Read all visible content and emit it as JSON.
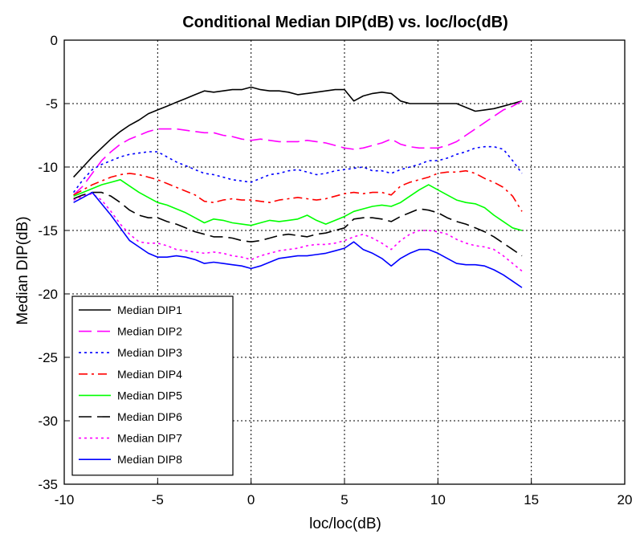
{
  "chart_data": {
    "type": "line",
    "title": "Conditional Median DIP(dB) vs. loc/loc(dB)",
    "xlabel": "loc/loc(dB)",
    "ylabel": "Median DIP(dB)",
    "xlim": [
      -10,
      20
    ],
    "ylim": [
      -35,
      0
    ],
    "xticks": [
      -10,
      -5,
      0,
      5,
      10,
      15,
      20
    ],
    "yticks": [
      0,
      -5,
      -10,
      -15,
      -20,
      -25,
      -30,
      -35
    ],
    "grid": true,
    "legend_position": "bottom-left",
    "series": [
      {
        "name": "Median DIP1",
        "color": "#000000",
        "dash": "solid",
        "x": [
          -9.5,
          -9,
          -8.5,
          -8,
          -7.5,
          -7,
          -6.5,
          -6,
          -5.5,
          -5,
          -4.5,
          -4,
          -3.5,
          -3,
          -2.5,
          -2,
          -1.5,
          -1,
          -0.5,
          0,
          0.5,
          1,
          1.5,
          2,
          2.5,
          3,
          3.5,
          4,
          4.5,
          5,
          5.5,
          6,
          6.5,
          7,
          7.5,
          8,
          8.5,
          9,
          9.5,
          10,
          10.5,
          11,
          11.5,
          12,
          12.5,
          13,
          13.5,
          14,
          14.5
        ],
        "y": [
          -10.8,
          -10,
          -9.2,
          -8.5,
          -7.8,
          -7.2,
          -6.7,
          -6.3,
          -5.8,
          -5.5,
          -5.2,
          -4.9,
          -4.6,
          -4.3,
          -4,
          -4.1,
          -4,
          -3.9,
          -3.9,
          -3.7,
          -3.9,
          -4,
          -4,
          -4.1,
          -4.3,
          -4.2,
          -4.1,
          -4,
          -3.9,
          -3.9,
          -4.8,
          -4.4,
          -4.2,
          -4.1,
          -4.2,
          -4.8,
          -5,
          -5,
          -5,
          -5,
          -5,
          -5,
          -5.3,
          -5.6,
          -5.5,
          -5.4,
          -5.2,
          -5,
          -4.8
        ]
      },
      {
        "name": "Median DIP2",
        "color": "#ff00ff",
        "dash": "longdash",
        "x": [
          -9.5,
          -9,
          -8.5,
          -8,
          -7.5,
          -7,
          -6.5,
          -6,
          -5.5,
          -5,
          -4.5,
          -4,
          -3.5,
          -3,
          -2.5,
          -2,
          -1.5,
          -1,
          -0.5,
          0,
          0.5,
          1,
          1.5,
          2,
          2.5,
          3,
          3.5,
          4,
          4.5,
          5,
          5.5,
          6,
          6.5,
          7,
          7.5,
          8,
          8.5,
          9,
          9.5,
          10,
          10.5,
          11,
          11.5,
          12,
          12.5,
          13,
          13.5,
          14,
          14.5
        ],
        "y": [
          -12.2,
          -11.5,
          -10.5,
          -9.5,
          -8.8,
          -8.2,
          -7.8,
          -7.5,
          -7.2,
          -7,
          -7,
          -7,
          -7.1,
          -7.2,
          -7.3,
          -7.3,
          -7.5,
          -7.6,
          -7.8,
          -7.9,
          -7.8,
          -7.9,
          -8,
          -8,
          -8,
          -7.9,
          -8,
          -8.1,
          -8.3,
          -8.5,
          -8.6,
          -8.5,
          -8.3,
          -8.1,
          -7.8,
          -8.2,
          -8.4,
          -8.5,
          -8.5,
          -8.5,
          -8.3,
          -8,
          -7.5,
          -7,
          -6.5,
          -6,
          -5.5,
          -5.2,
          -4.8
        ]
      },
      {
        "name": "Median DIP3",
        "color": "#0000ff",
        "dash": "dot",
        "x": [
          -9.5,
          -9,
          -8.5,
          -8,
          -7.5,
          -7,
          -6.5,
          -6,
          -5.5,
          -5,
          -4.5,
          -4,
          -3.5,
          -3,
          -2.5,
          -2,
          -1.5,
          -1,
          -0.5,
          0,
          0.5,
          1,
          1.5,
          2,
          2.5,
          3,
          3.5,
          4,
          4.5,
          5,
          5.5,
          6,
          6.5,
          7,
          7.5,
          8,
          8.5,
          9,
          9.5,
          10,
          10.5,
          11,
          11.5,
          12,
          12.5,
          13,
          13.5,
          14,
          14.5
        ],
        "y": [
          -12,
          -11,
          -10.2,
          -9.8,
          -9.5,
          -9.2,
          -9,
          -8.9,
          -8.8,
          -8.8,
          -9.2,
          -9.6,
          -9.9,
          -10.2,
          -10.5,
          -10.6,
          -10.8,
          -11,
          -11.1,
          -11.2,
          -10.9,
          -10.6,
          -10.5,
          -10.3,
          -10.2,
          -10.4,
          -10.6,
          -10.5,
          -10.3,
          -10.2,
          -10.1,
          -10,
          -10.3,
          -10.3,
          -10.5,
          -10.2,
          -10,
          -9.8,
          -9.5,
          -9.5,
          -9.3,
          -9,
          -8.8,
          -8.5,
          -8.4,
          -8.4,
          -8.6,
          -9.5,
          -10.5
        ]
      },
      {
        "name": "Median DIP4",
        "color": "#ff0000",
        "dash": "dashdot",
        "x": [
          -9.5,
          -9,
          -8.5,
          -8,
          -7.5,
          -7,
          -6.5,
          -6,
          -5.5,
          -5,
          -4.5,
          -4,
          -3.5,
          -3,
          -2.5,
          -2,
          -1.5,
          -1,
          -0.5,
          0,
          0.5,
          1,
          1.5,
          2,
          2.5,
          3,
          3.5,
          4,
          4.5,
          5,
          5.5,
          6,
          6.5,
          7,
          7.5,
          8,
          8.5,
          9,
          9.5,
          10,
          10.5,
          11,
          11.5,
          12,
          12.5,
          13,
          13.5,
          14,
          14.5
        ],
        "y": [
          -12.2,
          -11.8,
          -11.4,
          -11.1,
          -10.8,
          -10.6,
          -10.5,
          -10.6,
          -10.8,
          -11,
          -11.3,
          -11.6,
          -11.9,
          -12.2,
          -12.7,
          -12.8,
          -12.6,
          -12.5,
          -12.6,
          -12.6,
          -12.7,
          -12.8,
          -12.6,
          -12.5,
          -12.4,
          -12.5,
          -12.6,
          -12.5,
          -12.3,
          -12.1,
          -12,
          -12.1,
          -12,
          -12,
          -12.2,
          -11.5,
          -11.2,
          -11,
          -10.8,
          -10.5,
          -10.4,
          -10.4,
          -10.3,
          -10.5,
          -10.9,
          -11.2,
          -11.6,
          -12.3,
          -13.5
        ]
      },
      {
        "name": "Median DIP5",
        "color": "#00ff00",
        "dash": "solid",
        "x": [
          -9.5,
          -9,
          -8.5,
          -8,
          -7.5,
          -7,
          -6.5,
          -6,
          -5.5,
          -5,
          -4.5,
          -4,
          -3.5,
          -3,
          -2.5,
          -2,
          -1.5,
          -1,
          -0.5,
          0,
          0.5,
          1,
          1.5,
          2,
          2.5,
          3,
          3.5,
          4,
          4.5,
          5,
          5.5,
          6,
          6.5,
          7,
          7.5,
          8,
          8.5,
          9,
          9.5,
          10,
          10.5,
          11,
          11.5,
          12,
          12.5,
          13,
          13.5,
          14,
          14.5
        ],
        "y": [
          -12.3,
          -12,
          -11.7,
          -11.4,
          -11.2,
          -11,
          -11.5,
          -12,
          -12.4,
          -12.8,
          -13,
          -13.3,
          -13.6,
          -14,
          -14.4,
          -14.1,
          -14.2,
          -14.4,
          -14.5,
          -14.6,
          -14.4,
          -14.2,
          -14.3,
          -14.2,
          -14.1,
          -13.8,
          -14.2,
          -14.5,
          -14.2,
          -13.9,
          -13.5,
          -13.3,
          -13.1,
          -13,
          -13.1,
          -12.8,
          -12.3,
          -11.8,
          -11.4,
          -11.8,
          -12.2,
          -12.6,
          -12.8,
          -12.9,
          -13.2,
          -13.8,
          -14.3,
          -14.8,
          -15
        ]
      },
      {
        "name": "Median DIP6",
        "color": "#000000",
        "dash": "longdash",
        "x": [
          -9.5,
          -9,
          -8.5,
          -8,
          -7.5,
          -7,
          -6.5,
          -6,
          -5.5,
          -5,
          -4.5,
          -4,
          -3.5,
          -3,
          -2.5,
          -2,
          -1.5,
          -1,
          -0.5,
          0,
          0.5,
          1,
          1.5,
          2,
          2.5,
          3,
          3.5,
          4,
          4.5,
          5,
          5.5,
          6,
          6.5,
          7,
          7.5,
          8,
          8.5,
          9,
          9.5,
          10,
          10.5,
          11,
          11.5,
          12,
          12.5,
          13,
          13.5,
          14,
          14.5
        ],
        "y": [
          -12.5,
          -12.2,
          -12,
          -12,
          -12.3,
          -12.8,
          -13.4,
          -13.8,
          -14,
          -14,
          -14.3,
          -14.5,
          -14.8,
          -15.1,
          -15.3,
          -15.5,
          -15.5,
          -15.6,
          -15.8,
          -15.9,
          -15.8,
          -15.6,
          -15.4,
          -15.3,
          -15.4,
          -15.5,
          -15.3,
          -15.2,
          -15,
          -14.8,
          -14.1,
          -14,
          -14,
          -14.1,
          -14.3,
          -13.9,
          -13.6,
          -13.3,
          -13.4,
          -13.6,
          -14,
          -14.3,
          -14.5,
          -14.8,
          -15.1,
          -15.5,
          -16,
          -16.5,
          -17
        ]
      },
      {
        "name": "Median DIP7",
        "color": "#ff00ff",
        "dash": "dot",
        "x": [
          -9.5,
          -9,
          -8.5,
          -8,
          -7.5,
          -7,
          -6.5,
          -6,
          -5.5,
          -5,
          -4.5,
          -4,
          -3.5,
          -3,
          -2.5,
          -2,
          -1.5,
          -1,
          -0.5,
          0,
          0.5,
          1,
          1.5,
          2,
          2.5,
          3,
          3.5,
          4,
          4.5,
          5,
          5.5,
          6,
          6.5,
          7,
          7.5,
          8,
          8.5,
          9,
          9.5,
          10,
          10.5,
          11,
          11.5,
          12,
          12.5,
          13,
          13.5,
          14,
          14.5
        ],
        "y": [
          -12.6,
          -12.3,
          -12.1,
          -12.6,
          -13.5,
          -14.5,
          -15.3,
          -15.9,
          -16,
          -16,
          -16.2,
          -16.5,
          -16.6,
          -16.7,
          -16.8,
          -16.7,
          -16.8,
          -17,
          -17.1,
          -17.3,
          -17,
          -16.8,
          -16.6,
          -16.5,
          -16.4,
          -16.2,
          -16.1,
          -16.1,
          -16,
          -15.8,
          -15.5,
          -15.3,
          -15.6,
          -16,
          -16.5,
          -15.8,
          -15.3,
          -15,
          -15,
          -15.1,
          -15.3,
          -15.7,
          -16,
          -16.2,
          -16.3,
          -16.5,
          -17,
          -17.6,
          -18.2
        ]
      },
      {
        "name": "Median DIP8",
        "color": "#0000ff",
        "dash": "solid",
        "x": [
          -9.5,
          -9,
          -8.5,
          -8,
          -7.5,
          -7,
          -6.5,
          -6,
          -5.5,
          -5,
          -4.5,
          -4,
          -3.5,
          -3,
          -2.5,
          -2,
          -1.5,
          -1,
          -0.5,
          0,
          0.5,
          1,
          1.5,
          2,
          2.5,
          3,
          3.5,
          4,
          4.5,
          5,
          5.5,
          6,
          6.5,
          7,
          7.5,
          8,
          8.5,
          9,
          9.5,
          10,
          10.5,
          11,
          11.5,
          12,
          12.5,
          13,
          13.5,
          14,
          14.5
        ],
        "y": [
          -12.8,
          -12.4,
          -12,
          -12.9,
          -13.8,
          -14.8,
          -15.8,
          -16.3,
          -16.8,
          -17.1,
          -17.1,
          -17,
          -17.1,
          -17.3,
          -17.6,
          -17.5,
          -17.6,
          -17.7,
          -17.8,
          -18,
          -17.8,
          -17.5,
          -17.2,
          -17.1,
          -17,
          -17,
          -16.9,
          -16.8,
          -16.6,
          -16.4,
          -15.9,
          -16.5,
          -16.8,
          -17.2,
          -17.8,
          -17.2,
          -16.8,
          -16.5,
          -16.5,
          -16.8,
          -17.2,
          -17.6,
          -17.7,
          -17.7,
          -17.8,
          -18.1,
          -18.5,
          -19,
          -19.5
        ]
      }
    ]
  }
}
